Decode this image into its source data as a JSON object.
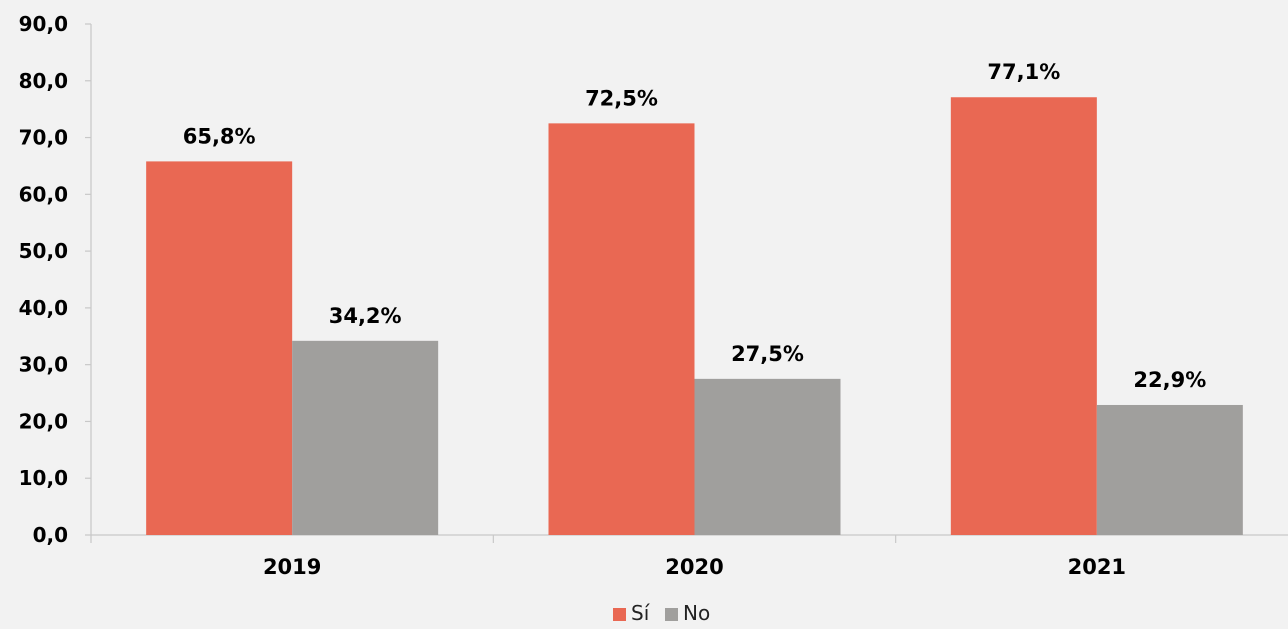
{
  "chart_data": {
    "type": "bar",
    "categories": [
      "2019",
      "2020",
      "2021"
    ],
    "series": [
      {
        "name": "Sí",
        "values": [
          65.8,
          72.5,
          77.1
        ],
        "labels": [
          "65,8%",
          "72,5%",
          "77,1%"
        ],
        "color": "#e96853"
      },
      {
        "name": "No",
        "values": [
          34.2,
          27.5,
          22.9
        ],
        "labels": [
          "34,2%",
          "27,5%",
          "22,9%"
        ],
        "color": "#a09f9d"
      }
    ],
    "y_ticks": [
      "0,0",
      "10,0",
      "20,0",
      "30,0",
      "40,0",
      "50,0",
      "60,0",
      "70,0",
      "80,0",
      "90,0"
    ],
    "ylim": [
      0,
      90
    ],
    "grid": false,
    "legend_position": "bottom-center",
    "title": "",
    "xlabel": "",
    "ylabel": ""
  },
  "colors": {
    "background": "#f2f2f2",
    "axis": "#c8c8c8"
  }
}
